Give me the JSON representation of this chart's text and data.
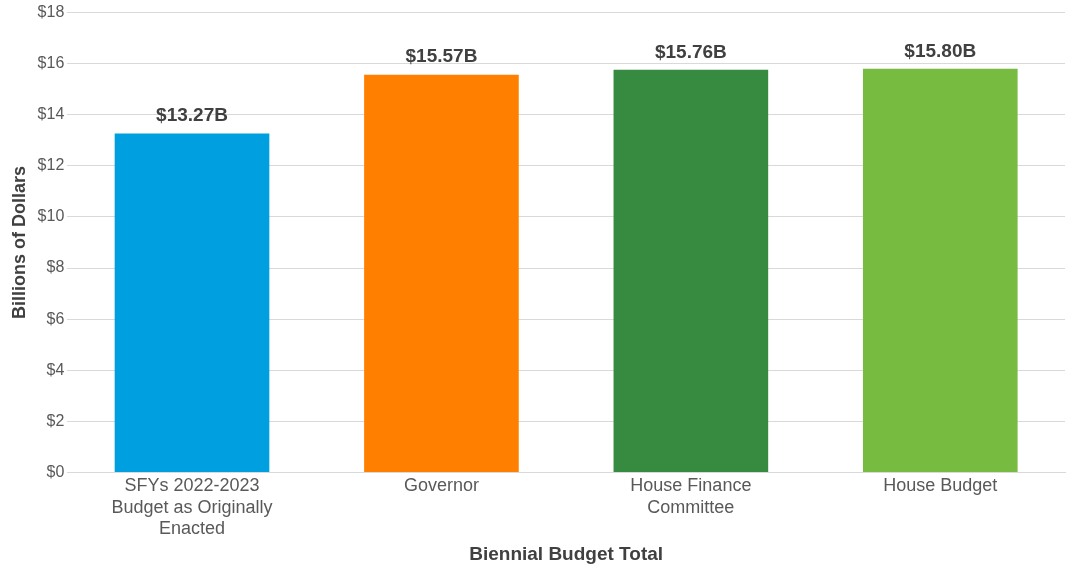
{
  "chart_data": {
    "type": "bar",
    "xlabel": "Biennial Budget Total",
    "ylabel": "Billions of Dollars",
    "categories": [
      "SFYs 2022-2023 Budget as Originally Enacted",
      "Governor",
      "House Finance Committee",
      "House Budget"
    ],
    "values": [
      13.27,
      15.57,
      15.76,
      15.8
    ],
    "colors": [
      "#009fe0",
      "#ff8000",
      "#378b41",
      "#77bb41"
    ],
    "value_labels": [
      "$13.27B",
      "$15.57B",
      "$15.76B",
      "$15.80B"
    ],
    "ylim": [
      0,
      18
    ],
    "yticks": [
      {
        "value": 0,
        "label": "$0"
      },
      {
        "value": 2,
        "label": "$2"
      },
      {
        "value": 4,
        "label": "$4"
      },
      {
        "value": 6,
        "label": "$6"
      },
      {
        "value": 8,
        "label": "$8"
      },
      {
        "value": 10,
        "label": "$10"
      },
      {
        "value": 12,
        "label": "$12"
      },
      {
        "value": 14,
        "label": "$14"
      },
      {
        "value": 16,
        "label": "$16"
      },
      {
        "value": 18,
        "label": "$18"
      }
    ],
    "grid": "y",
    "legend": false
  }
}
